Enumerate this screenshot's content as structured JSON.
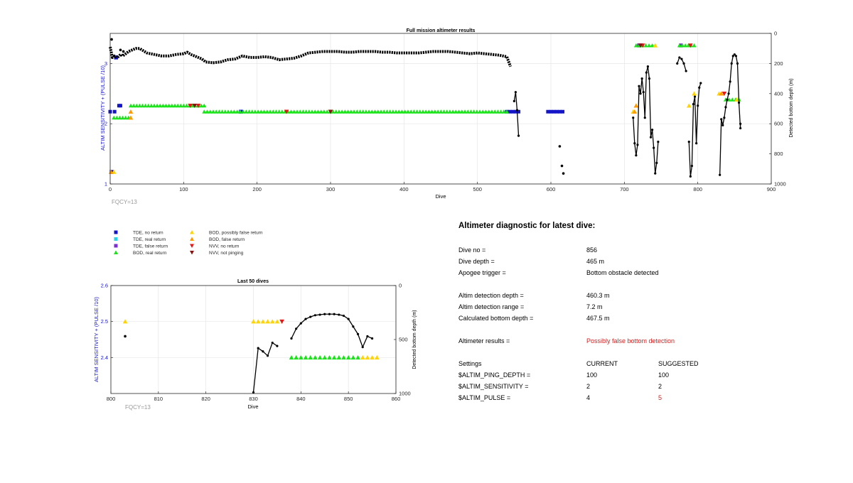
{
  "colors": {
    "tde_no_return": "#1515c8",
    "tde_real_return": "#2ad4e8",
    "tde_false_return": "#7b2fd0",
    "bod_real_return": "#18e418",
    "bod_possibly_false": "#ffd400",
    "bod_false_return": "#ff9a00",
    "nvv_no_return": "#e41818",
    "nvv_not_pinging": "#8b1010",
    "depth_line": "#000000",
    "left_axis_label": "#1515c8",
    "warning": "#d42020"
  },
  "legend": {
    "items": [
      {
        "label": "TDE, no return",
        "marker": "square",
        "color": "#1515c8"
      },
      {
        "label": "TDE, real return",
        "marker": "square",
        "color": "#2ad4e8"
      },
      {
        "label": "TDE, false return",
        "marker": "square",
        "color": "#7b2fd0"
      },
      {
        "label": "BOD, real return",
        "marker": "triangle-up",
        "color": "#18e418"
      },
      {
        "label": "BOD, possibly false return",
        "marker": "triangle-up",
        "color": "#ffd400"
      },
      {
        "label": "BOD, false return",
        "marker": "triangle-up",
        "color": "#ff9a00"
      },
      {
        "label": "NVV, no return",
        "marker": "triangle-down",
        "color": "#e41818"
      },
      {
        "label": "NVV, not pinging",
        "marker": "triangle-down",
        "color": "#8b1010"
      }
    ]
  },
  "chart_data": [
    {
      "type": "scatter",
      "title": "Full mission altimeter results",
      "xlabel": "Dive",
      "ylabel": "ALTIM SENSITIVITY + (PULSE /10)",
      "y2label": "Detected bottom depth (m)",
      "annotation": "FQCY=13",
      "xlim": [
        0,
        900
      ],
      "ylim": [
        1,
        3.5
      ],
      "y2lim": [
        1000,
        0
      ],
      "xticks": [
        "0",
        "100",
        "200",
        "300",
        "400",
        "500",
        "600",
        "700",
        "800",
        "900"
      ],
      "yticks": [
        "1",
        "2",
        "3"
      ],
      "y2ticks": [
        "0",
        "200",
        "400",
        "600",
        "800",
        "1000"
      ],
      "grid": true,
      "marker_series": [
        {
          "name": "TDE, no return",
          "marker": "square",
          "color": "#1515c8",
          "segments": [
            [
              0,
              6,
              2.2
            ],
            [
              12,
              14,
              2.3
            ],
            [
              540,
              556,
              2.2
            ],
            [
              596,
              616,
              2.2
            ]
          ],
          "points": [
            [
              2,
              1.2
            ],
            [
              8,
              3.1
            ],
            [
              178,
              2.2
            ]
          ]
        },
        {
          "name": "TDE, false return",
          "marker": "square",
          "color": "#7b2fd0",
          "segments": [],
          "points": [
            [
              720,
              3.3
            ],
            [
              777,
              3.3
            ]
          ]
        },
        {
          "name": "BOD, real return",
          "marker": "triangle-up",
          "color": "#18e418",
          "segments": [
            [
              5,
              25,
              2.1
            ],
            [
              28,
              128,
              2.3
            ],
            [
              128,
              540,
              2.2
            ],
            [
              716,
              738,
              3.3
            ],
            [
              775,
              795,
              3.3
            ],
            [
              838,
              856,
              2.4
            ]
          ],
          "points": []
        },
        {
          "name": "BOD, possibly false return",
          "marker": "triangle-up",
          "color": "#ffd400",
          "segments": [],
          "points": [
            [
              5,
              1.2
            ],
            [
              712,
              2.2
            ],
            [
              716,
              2.3
            ],
            [
              742,
              3.3
            ],
            [
              788,
              2.3
            ],
            [
              795,
              2.5
            ],
            [
              829,
              2.5
            ],
            [
              853,
              2.4
            ]
          ]
        },
        {
          "name": "BOD, false return",
          "marker": "triangle-up",
          "color": "#ff9a00",
          "segments": [],
          "points": [
            [
              1,
              1.2
            ],
            [
              28,
              2.2
            ],
            [
              28,
              2.1
            ],
            [
              714,
              2.2
            ],
            [
              716,
              2.3
            ],
            [
              832,
              2.5
            ]
          ]
        },
        {
          "name": "NVV, no return",
          "marker": "triangle-down",
          "color": "#e41818",
          "segments": [],
          "points": [
            [
              109,
              2.3
            ],
            [
              120,
              2.3
            ],
            [
              240,
              2.2
            ],
            [
              725,
              3.3
            ],
            [
              790,
              3.3
            ],
            [
              836,
              2.5
            ]
          ]
        },
        {
          "name": "NVV, not pinging",
          "marker": "triangle-down",
          "color": "#8b1010",
          "segments": [],
          "points": [
            [
              115,
              2.3
            ],
            [
              300,
              2.2
            ],
            [
              722,
              3.3
            ]
          ]
        }
      ],
      "depth_series": {
        "name": "Detected bottom depth",
        "color": "#000000",
        "line_x": [
          0,
          3,
          6,
          10,
          13,
          15,
          17,
          20,
          25,
          30,
          35,
          40,
          50,
          60,
          70,
          80,
          90,
          100,
          105,
          110,
          115,
          120,
          125,
          130,
          140,
          150,
          160,
          170,
          180,
          190,
          200,
          210,
          220,
          230,
          240,
          250,
          260,
          270,
          280,
          290,
          300,
          310,
          320,
          330,
          340,
          350,
          360,
          370,
          380,
          390,
          400,
          410,
          420,
          430,
          440,
          450,
          460,
          470,
          480,
          490,
          500,
          510,
          520,
          530,
          540,
          545
        ],
        "line_depth": [
          90,
          160,
          150,
          160,
          145,
          140,
          150,
          140,
          120,
          110,
          100,
          100,
          130,
          140,
          150,
          150,
          140,
          135,
          125,
          140,
          150,
          160,
          170,
          190,
          195,
          190,
          175,
          170,
          150,
          160,
          160,
          155,
          160,
          175,
          170,
          165,
          150,
          130,
          125,
          120,
          120,
          120,
          125,
          125,
          120,
          120,
          120,
          125,
          125,
          130,
          130,
          130,
          130,
          125,
          120,
          120,
          120,
          125,
          130,
          135,
          130,
          135,
          140,
          145,
          155,
          220
        ],
        "scatter_points": [
          [
            2,
            40
          ],
          [
            14,
            110
          ],
          [
            18,
            120
          ],
          [
            612,
            750
          ],
          [
            615,
            880
          ],
          [
            617,
            930
          ]
        ],
        "segments": [
          [
            [
              550,
              450
            ],
            [
              552,
              390
            ],
            [
              554,
              510
            ],
            [
              556,
              680
            ]
          ],
          [
            [
              712,
              560
            ],
            [
              714,
              730
            ],
            [
              716,
              810
            ],
            [
              718,
              740
            ],
            [
              720,
              350
            ],
            [
              722,
              400
            ],
            [
              724,
              300
            ],
            [
              726,
              390
            ],
            [
              728,
              560
            ],
            [
              730,
              260
            ],
            [
              732,
              220
            ],
            [
              734,
              300
            ],
            [
              736,
              690
            ],
            [
              738,
              640
            ],
            [
              740,
              760
            ],
            [
              742,
              930
            ],
            [
              744,
              860
            ],
            [
              746,
              720
            ]
          ],
          [
            [
              772,
              200
            ],
            [
              775,
              160
            ],
            [
              778,
              170
            ],
            [
              781,
              200
            ],
            [
              784,
              250
            ]
          ],
          [
            [
              788,
              720
            ],
            [
              790,
              950
            ],
            [
              792,
              880
            ],
            [
              794,
              470
            ],
            [
              796,
              420
            ],
            [
              798,
              730
            ],
            [
              800,
              480
            ],
            [
              802,
              360
            ],
            [
              804,
              330
            ]
          ],
          [
            [
              830,
              940
            ],
            [
              832,
              570
            ],
            [
              834,
              610
            ],
            [
              836,
              560
            ],
            [
              838,
              490
            ],
            [
              840,
              440
            ],
            [
              842,
              400
            ],
            [
              844,
              320
            ],
            [
              846,
              200
            ],
            [
              848,
              150
            ],
            [
              850,
              140
            ],
            [
              852,
              150
            ],
            [
              854,
              200
            ],
            [
              856,
              460
            ],
            [
              858,
              630
            ],
            [
              858,
              600
            ]
          ]
        ]
      }
    },
    {
      "type": "scatter",
      "title": "Last 50 dives",
      "xlabel": "Dive",
      "ylabel": "ALTIM SENSITIVITY + (PULSE /10)",
      "y2label": "Detected bottom depth (m)",
      "annotation": "FQCY=13",
      "xlim": [
        800,
        860
      ],
      "ylim": [
        2.3,
        2.6
      ],
      "y2lim": [
        1000,
        0
      ],
      "xticks": [
        "800",
        "810",
        "820",
        "830",
        "840",
        "850",
        "860"
      ],
      "yticks": [
        "2.4",
        "2.5",
        "2.6"
      ],
      "y2ticks": [
        "0",
        "500",
        "1000"
      ],
      "grid": true,
      "marker_series": [
        {
          "name": "BOD, possibly false return",
          "marker": "triangle-up",
          "color": "#ffd400",
          "points": [
            [
              803,
              2.5
            ],
            [
              830,
              2.5
            ],
            [
              831,
              2.5
            ],
            [
              832,
              2.5
            ],
            [
              833,
              2.5
            ],
            [
              834,
              2.5
            ],
            [
              835,
              2.5
            ],
            [
              853,
              2.4
            ],
            [
              854,
              2.4
            ],
            [
              855,
              2.4
            ],
            [
              856,
              2.4
            ]
          ]
        },
        {
          "name": "BOD, real return",
          "marker": "triangle-up",
          "color": "#18e418",
          "points": [
            [
              838,
              2.4
            ],
            [
              839,
              2.4
            ],
            [
              840,
              2.4
            ],
            [
              841,
              2.4
            ],
            [
              842,
              2.4
            ],
            [
              843,
              2.4
            ],
            [
              844,
              2.4
            ],
            [
              845,
              2.4
            ],
            [
              846,
              2.4
            ],
            [
              847,
              2.4
            ],
            [
              848,
              2.4
            ],
            [
              849,
              2.4
            ],
            [
              850,
              2.4
            ],
            [
              851,
              2.4
            ],
            [
              852,
              2.4
            ]
          ]
        },
        {
          "name": "NVV, no return",
          "marker": "triangle-down",
          "color": "#e41818",
          "points": [
            [
              836,
              2.5
            ]
          ]
        }
      ],
      "depth_series": {
        "name": "Detected bottom depth",
        "color": "#000000",
        "scatter_points": [
          [
            803,
            470
          ]
        ],
        "segments": [
          [
            [
              830,
              990
            ],
            [
              831,
              580
            ],
            [
              832,
              610
            ],
            [
              833,
              650
            ],
            [
              834,
              530
            ],
            [
              835,
              560
            ]
          ],
          [
            [
              838,
              490
            ],
            [
              839,
              400
            ],
            [
              840,
              350
            ],
            [
              841,
              310
            ],
            [
              842,
              290
            ],
            [
              843,
              275
            ],
            [
              844,
              270
            ],
            [
              845,
              265
            ],
            [
              846,
              265
            ],
            [
              847,
              265
            ],
            [
              848,
              270
            ],
            [
              849,
              280
            ],
            [
              850,
              310
            ],
            [
              851,
              380
            ],
            [
              852,
              450
            ],
            [
              853,
              570
            ],
            [
              854,
              470
            ],
            [
              855,
              490
            ]
          ]
        ]
      }
    }
  ],
  "diagnostic": {
    "title": "Altimeter diagnostic for latest dive:",
    "rows": [
      {
        "label": "Dive no =",
        "value": "856"
      },
      {
        "label": "Dive depth =",
        "value": "465 m"
      },
      {
        "label": "Apogee trigger =",
        "value": "Bottom obstacle detected"
      },
      {
        "label": "Altim detection depth =",
        "value": "460.3 m"
      },
      {
        "label": "Altim detection range =",
        "value": "7.2 m"
      },
      {
        "label": "Calculated bottom depth =",
        "value": "467.5 m"
      },
      {
        "label": "Altimeter results =",
        "value": "Possibly false bottom detection"
      }
    ],
    "settings": {
      "label": "Settings",
      "current_label": "CURRENT",
      "suggested_label": "SUGGESTED",
      "rows": [
        {
          "label": "$ALTIM_PING_DEPTH =",
          "current": "100",
          "suggested": "100"
        },
        {
          "label": "$ALTIM_SENSITIVITY =",
          "current": "2",
          "suggested": "2"
        },
        {
          "label": "$ALTIM_PULSE =",
          "current": "4",
          "suggested": "5"
        }
      ]
    }
  }
}
